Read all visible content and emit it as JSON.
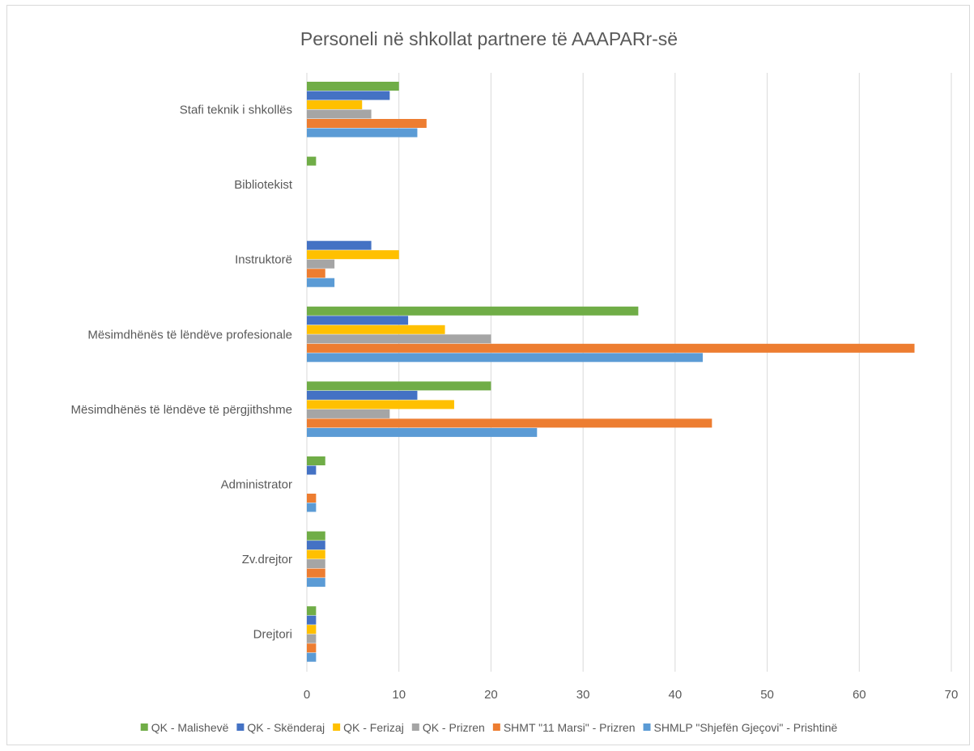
{
  "chart_data": {
    "type": "bar",
    "orientation": "horizontal",
    "title": "Personeli në shkollat partnere të AAAPARr-së",
    "xlabel": "",
    "ylabel": "",
    "xlim": [
      0,
      70
    ],
    "x_ticks": [
      "0",
      "10",
      "20",
      "30",
      "40",
      "50",
      "60",
      "70"
    ],
    "grid": true,
    "legend_position": "bottom",
    "categories": [
      "Stafi teknik i shkollës",
      "Bibliotekist",
      "Instruktorë",
      "Mësimdhënës të lëndëve profesionale",
      "Mësimdhënës të lëndëve të përgjithshme",
      "Administrator",
      "Zv.drejtor",
      "Drejtori"
    ],
    "series": [
      {
        "name": "QK - Malishevë",
        "color": "#70ad47",
        "values": [
          10,
          1,
          0,
          36,
          20,
          2,
          2,
          1
        ]
      },
      {
        "name": "QK - Skënderaj",
        "color": "#4472c4",
        "values": [
          9,
          0,
          7,
          11,
          12,
          1,
          2,
          1
        ]
      },
      {
        "name": "QK - Ferizaj",
        "color": "#ffc000",
        "values": [
          6,
          0,
          10,
          15,
          16,
          0,
          2,
          1
        ]
      },
      {
        "name": "QK - Prizren",
        "color": "#a5a5a5",
        "values": [
          7,
          0,
          3,
          20,
          9,
          0,
          2,
          1
        ]
      },
      {
        "name": "SHMT \"11 Marsi\" - Prizren",
        "color": "#ed7d31",
        "values": [
          13,
          0,
          2,
          66,
          44,
          1,
          2,
          1
        ]
      },
      {
        "name": "SHMLP \"Shjefën Gjeçovi\" - Prishtinë",
        "color": "#5b9bd5",
        "values": [
          12,
          0,
          3,
          43,
          25,
          1,
          2,
          1
        ]
      }
    ]
  }
}
